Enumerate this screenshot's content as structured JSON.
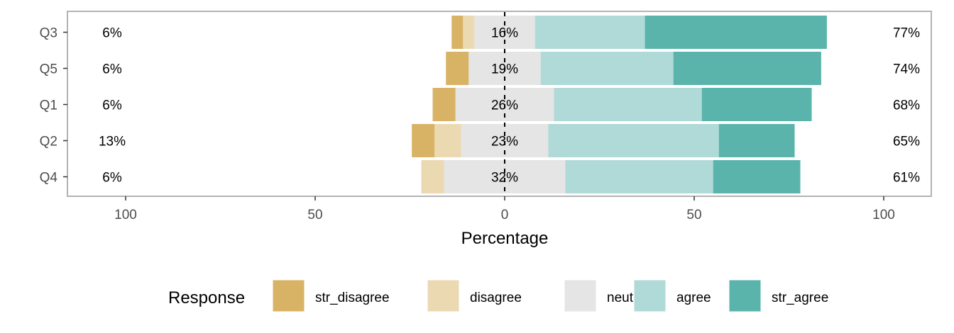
{
  "chart_data": {
    "type": "bar",
    "orientation": "horizontal-diverging",
    "xlabel": "Percentage",
    "xlim": [
      -100,
      100
    ],
    "xticks": [
      -100,
      -50,
      0,
      50,
      100
    ],
    "xtick_labels": [
      "100",
      "50",
      "0",
      "50",
      "100"
    ],
    "categories": [
      "Q3",
      "Q5",
      "Q1",
      "Q2",
      "Q4"
    ],
    "legend": {
      "title": "Response",
      "position": "bottom"
    },
    "series": [
      {
        "name": "str_disagree",
        "color": "#d8b365",
        "values": [
          3,
          6,
          6,
          6,
          0
        ]
      },
      {
        "name": "disagree",
        "color": "#ebd9b2",
        "values": [
          3,
          0,
          0,
          7,
          6
        ]
      },
      {
        "name": "neutral",
        "color": "#e5e5e5",
        "values": [
          16,
          19,
          26,
          23,
          32
        ]
      },
      {
        "name": "agree",
        "color": "#b0dad7",
        "values": [
          29,
          35,
          39,
          45,
          39
        ]
      },
      {
        "name": "str_agree",
        "color": "#5ab4ac",
        "values": [
          48,
          39,
          29,
          20,
          23
        ]
      }
    ],
    "left_labels": [
      "6%",
      "6%",
      "6%",
      "13%",
      "6%"
    ],
    "center_labels": [
      "16%",
      "19%",
      "26%",
      "23%",
      "32%"
    ],
    "right_labels": [
      "77%",
      "74%",
      "68%",
      "65%",
      "61%"
    ]
  }
}
